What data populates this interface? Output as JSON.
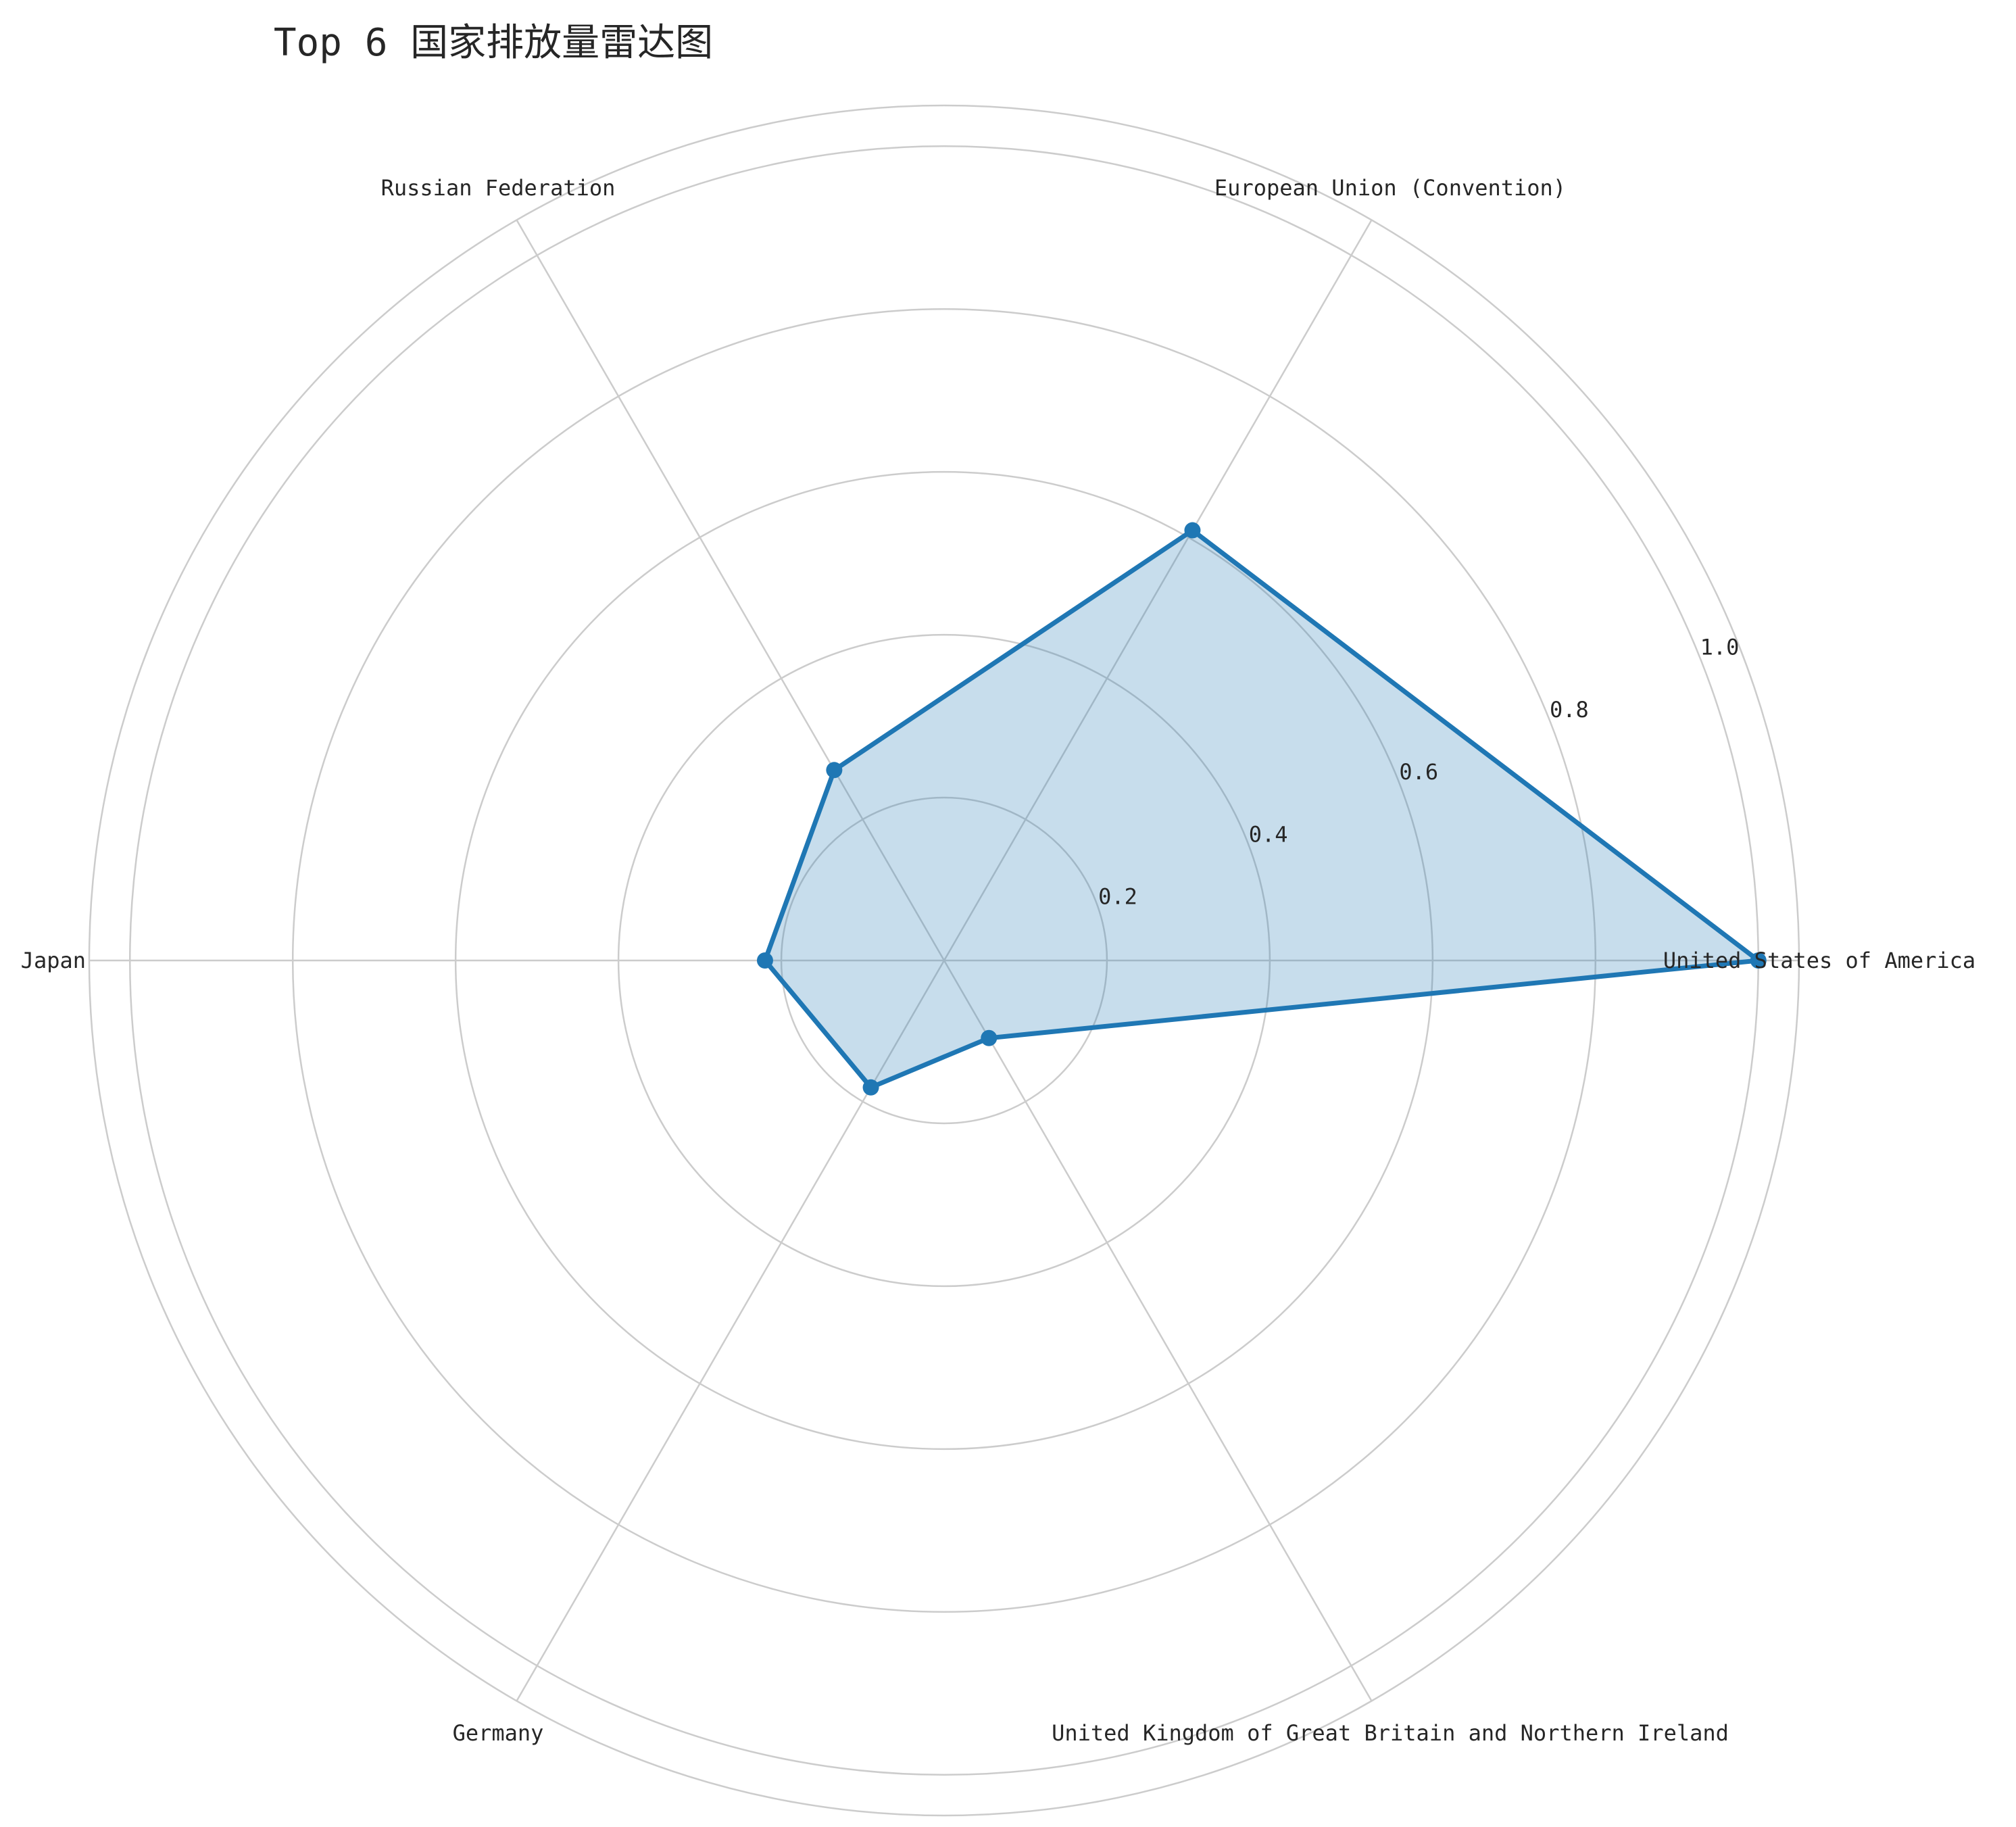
{
  "chart_data": {
    "type": "radar",
    "title": "Top 6 国家排放量雷达图",
    "categories": [
      "United States of America",
      "European Union (Convention)",
      "Russian Federation",
      "Japan",
      "Germany",
      "United Kingdom of Great Britain and Northern Ireland"
    ],
    "series": [
      {
        "values": [
          1.0,
          0.61,
          0.27,
          0.22,
          0.18,
          0.11
        ],
        "color": "#1f77b4",
        "fill_color": "#1f77b4",
        "fill_opacity": 0.25
      }
    ],
    "rlim": [
      0,
      1.05
    ],
    "rticks": [
      0.2,
      0.4,
      0.6,
      0.8,
      1.0
    ],
    "rtick_labels": [
      "0.2",
      "0.4",
      "0.6",
      "0.8",
      "1.0"
    ],
    "grid": true,
    "grid_color": "#cccccc"
  }
}
